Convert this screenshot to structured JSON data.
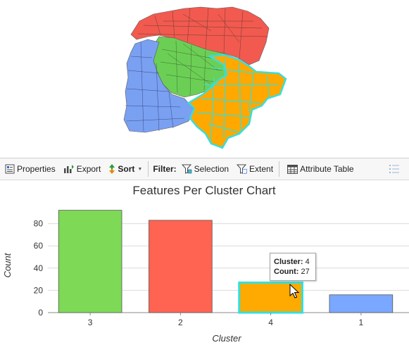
{
  "toolbar": {
    "properties": "Properties",
    "export": "Export",
    "sort": "Sort",
    "filter": "Filter:",
    "selection": "Selection",
    "extent": "Extent",
    "attribute_table": "Attribute Table"
  },
  "colors": {
    "cluster_3": "#7ed957",
    "cluster_2": "#ff6352",
    "cluster_4": "#ffaa00",
    "cluster_1": "#7aa7ff",
    "highlight": "#33e0e0"
  },
  "chart_data": {
    "type": "bar",
    "title": "Features Per Cluster Chart",
    "xlabel": "Cluster",
    "ylabel": "Count",
    "categories": [
      "3",
      "2",
      "4",
      "1"
    ],
    "values": [
      92,
      83,
      27,
      16
    ],
    "colors": [
      "#7ed957",
      "#ff6352",
      "#ffaa00",
      "#7aa7ff"
    ],
    "yticks": [
      0,
      20,
      40,
      60,
      80
    ],
    "ylim": [
      0,
      100
    ],
    "grid": true,
    "selected_category": "4"
  },
  "tooltip": {
    "cluster_label": "Cluster:",
    "cluster_value": "4",
    "count_label": "Count:",
    "count_value": "27"
  }
}
